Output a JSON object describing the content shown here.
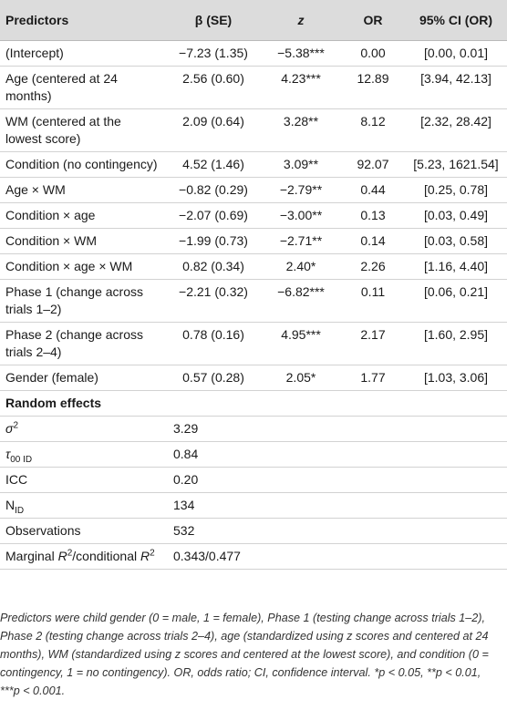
{
  "table": {
    "headers": {
      "predictors": "Predictors",
      "beta_se": "β (SE)",
      "z": "z",
      "or": "OR",
      "ci": "95% CI (OR)"
    },
    "rows": [
      {
        "predictor": "(Intercept)",
        "beta": "−7.23 (1.35)",
        "z": "−5.38***",
        "or": "0.00",
        "ci": "[0.00, 0.01]"
      },
      {
        "predictor": "Age (centered at 24 months)",
        "beta": "2.56 (0.60)",
        "z": "4.23***",
        "or": "12.89",
        "ci": "[3.94, 42.13]"
      },
      {
        "predictor": "WM (centered at the lowest score)",
        "beta": "2.09 (0.64)",
        "z": "3.28**",
        "or": "8.12",
        "ci": "[2.32, 28.42]"
      },
      {
        "predictor": "Condition (no contingency)",
        "beta": "4.52 (1.46)",
        "z": "3.09**",
        "or": "92.07",
        "ci": "[5.23, 1621.54]"
      },
      {
        "predictor": "Age × WM",
        "beta": "−0.82 (0.29)",
        "z": "−2.79**",
        "or": "0.44",
        "ci": "[0.25, 0.78]"
      },
      {
        "predictor": "Condition × age",
        "beta": "−2.07 (0.69)",
        "z": "−3.00**",
        "or": "0.13",
        "ci": "[0.03, 0.49]"
      },
      {
        "predictor": "Condition × WM",
        "beta": "−1.99 (0.73)",
        "z": "−2.71**",
        "or": "0.14",
        "ci": "[0.03, 0.58]"
      },
      {
        "predictor": "Condition × age × WM",
        "beta": "0.82 (0.34)",
        "z": "2.40*",
        "or": "2.26",
        "ci": "[1.16, 4.40]"
      },
      {
        "predictor": "Phase 1 (change across trials 1–2)",
        "beta": "−2.21 (0.32)",
        "z": "−6.82***",
        "or": "0.11",
        "ci": "[0.06, 0.21]"
      },
      {
        "predictor": "Phase 2 (change across trials 2–4)",
        "beta": "0.78 (0.16)",
        "z": "4.95***",
        "or": "2.17",
        "ci": "[1.60, 2.95]"
      },
      {
        "predictor": "Gender (female)",
        "beta": "0.57 (0.28)",
        "z": "2.05*",
        "or": "1.77",
        "ci": "[1.03, 3.06]"
      }
    ],
    "random_effects": {
      "heading": "Random effects",
      "sigma_sym": "σ",
      "sigma_sup": "2",
      "sigma_val": "3.29",
      "tau_sym": "τ",
      "tau_sub": "00 ID",
      "tau_val": "0.84",
      "icc_label": "ICC",
      "icc_val": "0.20",
      "n_base": "N",
      "n_sub": "ID",
      "n_val": "134",
      "obs_label": "Observations",
      "obs_val": "532",
      "r2_a": "Marginal ",
      "r2_r1": "R",
      "r2_sup1": "2",
      "r2_b": "/conditional ",
      "r2_r2": "R",
      "r2_sup2": "2",
      "r2_val": "0.343/0.477"
    }
  },
  "note": "Predictors were child gender (0 = male, 1 = female), Phase 1 (testing change across trials 1–2), Phase 2 (testing change across trials 2–4), age (standardized using z scores and centered at 24 months), WM (standardized using z scores and centered at the lowest score), and condition (0 = contingency, 1 = no contingency). OR, odds ratio; CI, confidence interval. *p < 0.05, **p < 0.01, ***p < 0.001."
}
